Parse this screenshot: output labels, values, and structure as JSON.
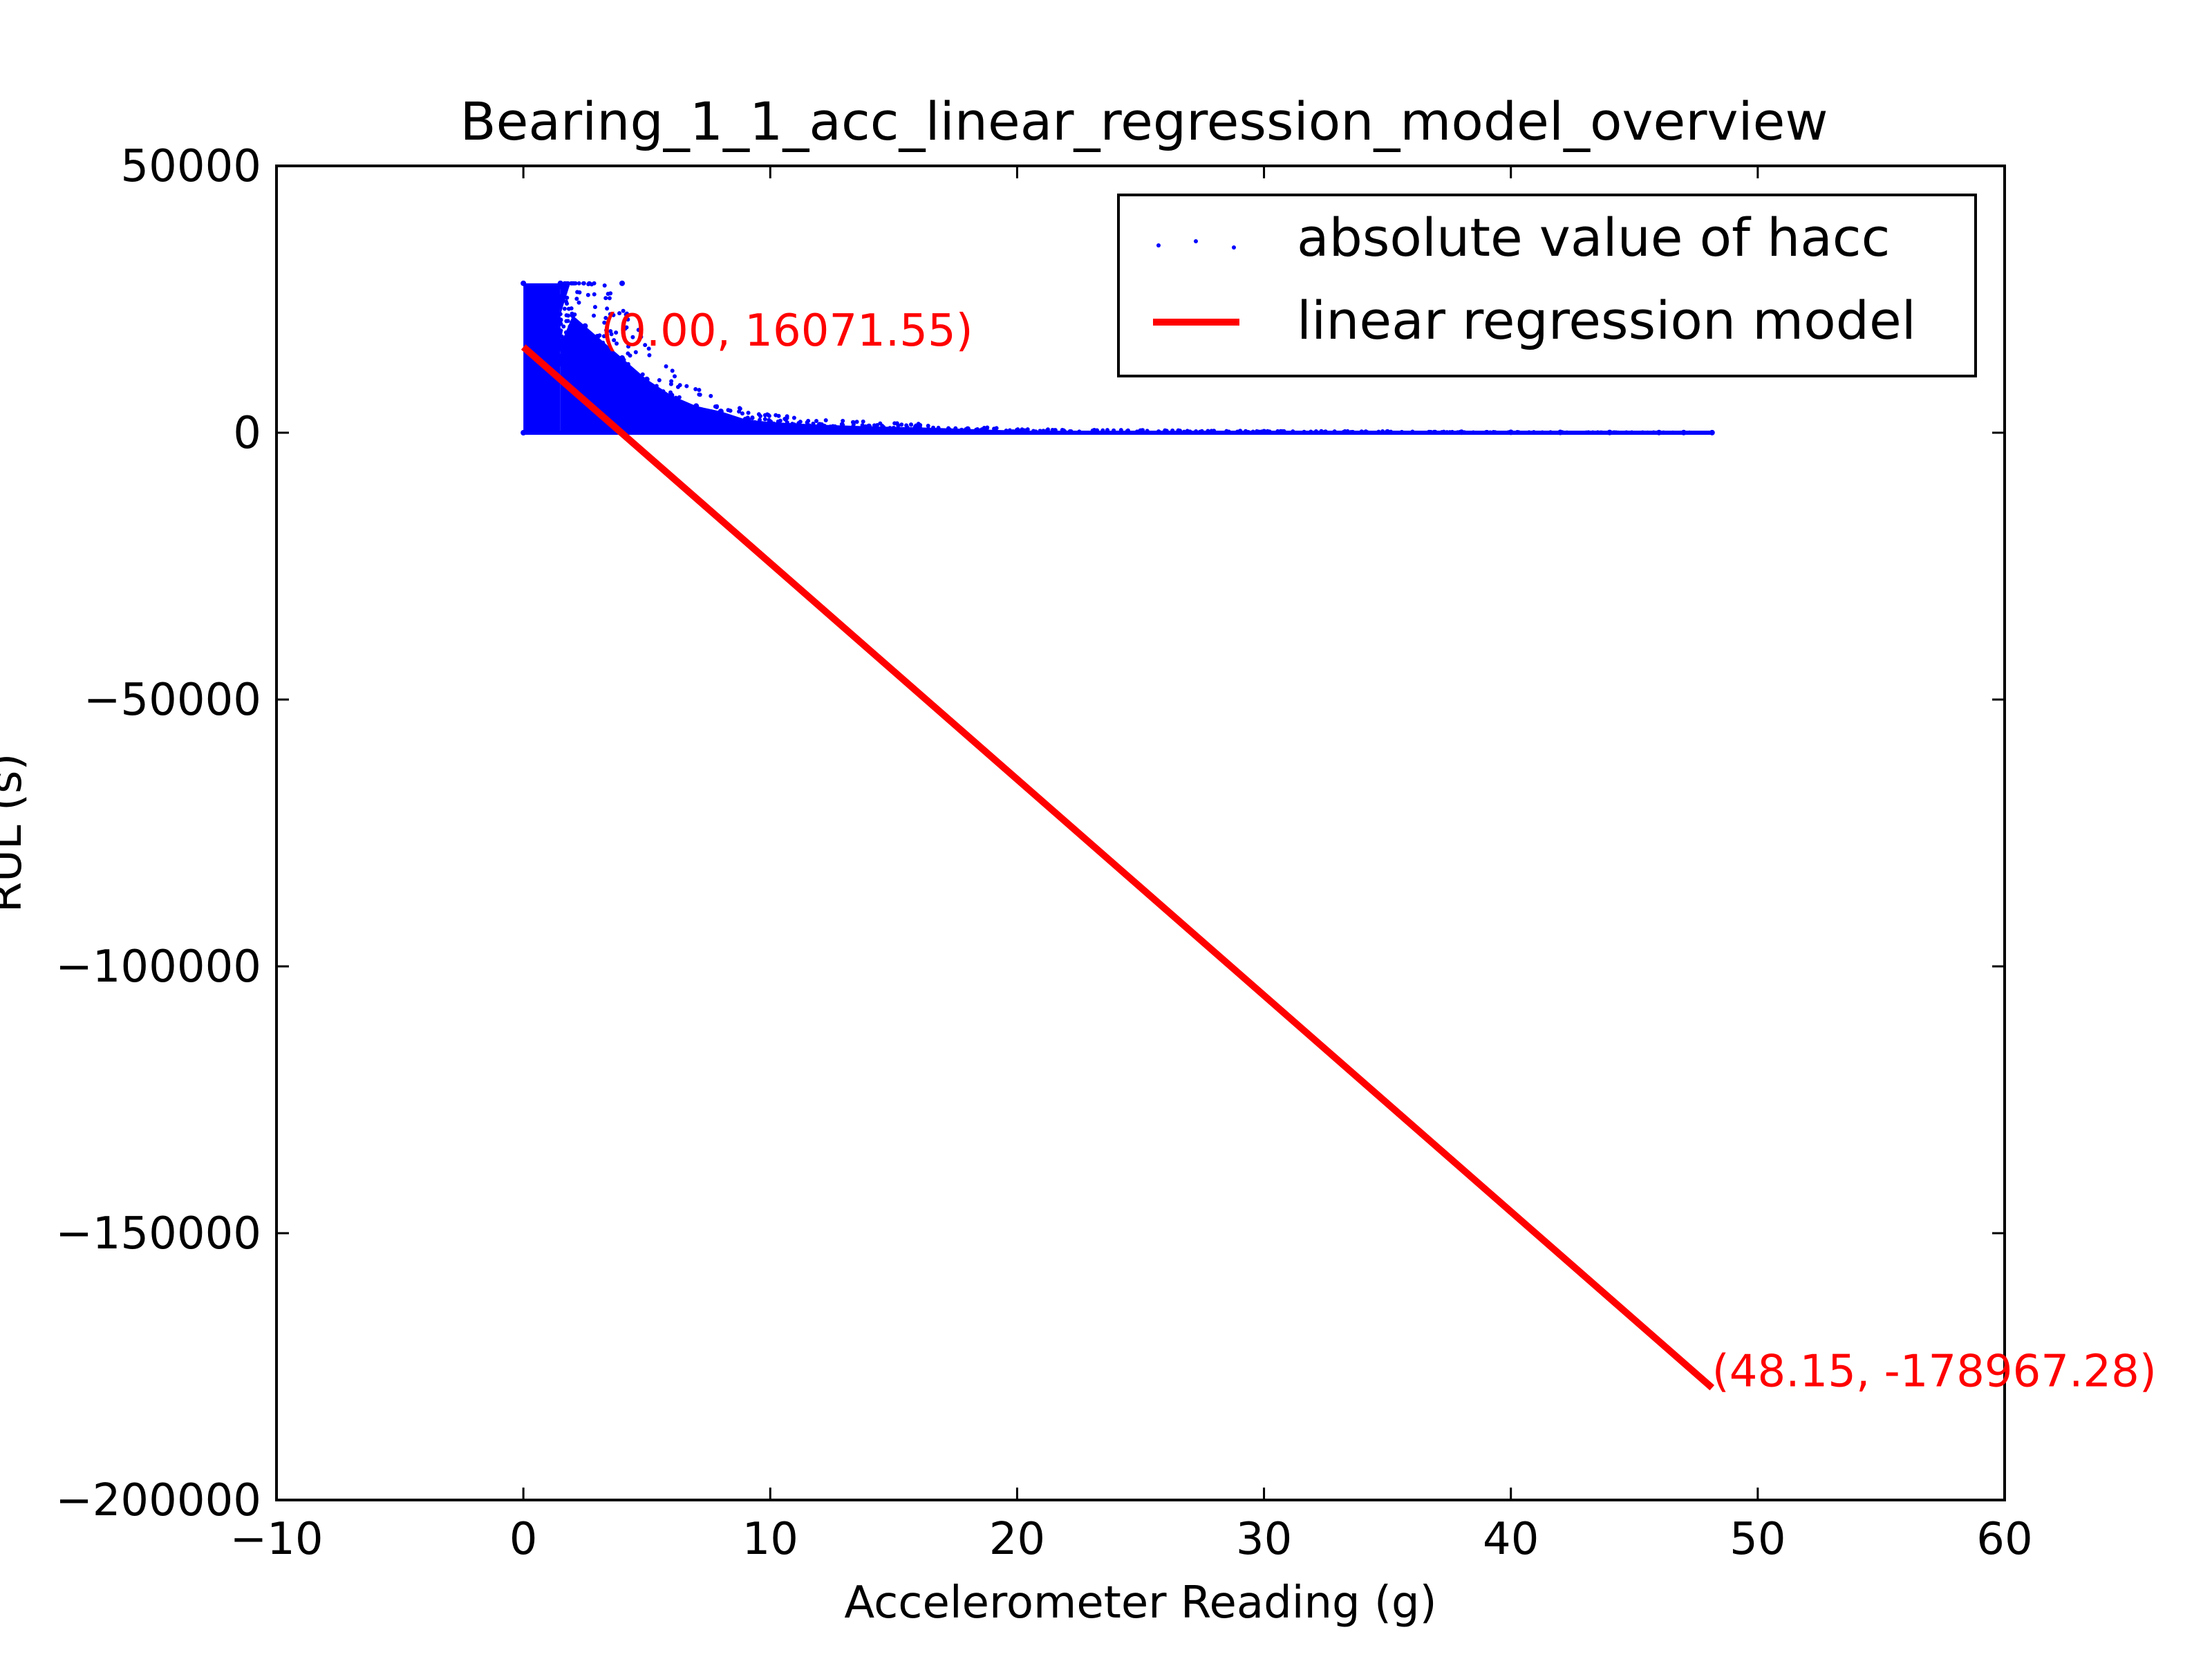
{
  "chart_data": {
    "type": "scatter",
    "title": "Bearing_1_1_acc_linear_regression_model_overview",
    "xlabel": "Accelerometer Reading (g)",
    "ylabel": "RUL (s)",
    "xlim": [
      -10,
      60
    ],
    "ylim": [
      -200000,
      50000
    ],
    "xticks": [
      -10,
      0,
      10,
      20,
      30,
      40,
      50,
      60
    ],
    "yticks": [
      50000,
      0,
      -50000,
      -100000,
      -150000,
      -200000
    ],
    "xtick_labels": [
      "−10",
      "0",
      "10",
      "20",
      "30",
      "40",
      "50",
      "60"
    ],
    "ytick_labels": [
      "50000",
      "0",
      "−50000",
      "−100000",
      "−150000",
      "−200000"
    ],
    "grid": false,
    "legend": {
      "placement": "top-right",
      "entries": [
        "absolute value of hacc",
        "linear regression model"
      ]
    },
    "colors": {
      "scatter": "#0000ff",
      "regression": "#ff0000",
      "annotation": "#ff0000"
    },
    "series": [
      {
        "name": "absolute value of hacc",
        "kind": "scatter",
        "points": [
          {
            "x": 0.0,
            "y": 28000
          },
          {
            "x": 1.5,
            "y": 28000
          },
          {
            "x": 4.0,
            "y": 28000
          },
          {
            "x": 0.0,
            "y": 0
          },
          {
            "x": 2.0,
            "y": 22000
          },
          {
            "x": 2.5,
            "y": 20000
          },
          {
            "x": 3.0,
            "y": 18000
          },
          {
            "x": 4.0,
            "y": 14000
          },
          {
            "x": 5.0,
            "y": 10000
          },
          {
            "x": 6.0,
            "y": 7000
          },
          {
            "x": 7.0,
            "y": 5000
          },
          {
            "x": 8.0,
            "y": 4000
          },
          {
            "x": 9.0,
            "y": 2500
          },
          {
            "x": 10.0,
            "y": 2000
          },
          {
            "x": 12.0,
            "y": 1500
          },
          {
            "x": 14.0,
            "y": 1200
          },
          {
            "x": 16.0,
            "y": 1000
          },
          {
            "x": 18.0,
            "y": 700
          },
          {
            "x": 20.0,
            "y": 400
          },
          {
            "x": 25.0,
            "y": 300
          },
          {
            "x": 30.0,
            "y": 200
          },
          {
            "x": 35.0,
            "y": 150
          },
          {
            "x": 38.0,
            "y": 100
          },
          {
            "x": 40.0,
            "y": 80
          },
          {
            "x": 42.0,
            "y": 60
          },
          {
            "x": 44.0,
            "y": 50
          },
          {
            "x": 46.0,
            "y": 40
          },
          {
            "x": 47.0,
            "y": 30
          },
          {
            "x": 48.15,
            "y": 20
          }
        ]
      },
      {
        "name": "linear regression model",
        "kind": "line",
        "x": [
          0.0,
          48.15
        ],
        "y": [
          16071.55,
          -178967.28
        ]
      }
    ],
    "annotations": [
      {
        "text": "(0.00, 16071.55)",
        "x": 0.0,
        "y": 16071.55
      },
      {
        "text": "(48.15, -178967.28)",
        "x": 48.15,
        "y": -178967.28
      }
    ]
  }
}
